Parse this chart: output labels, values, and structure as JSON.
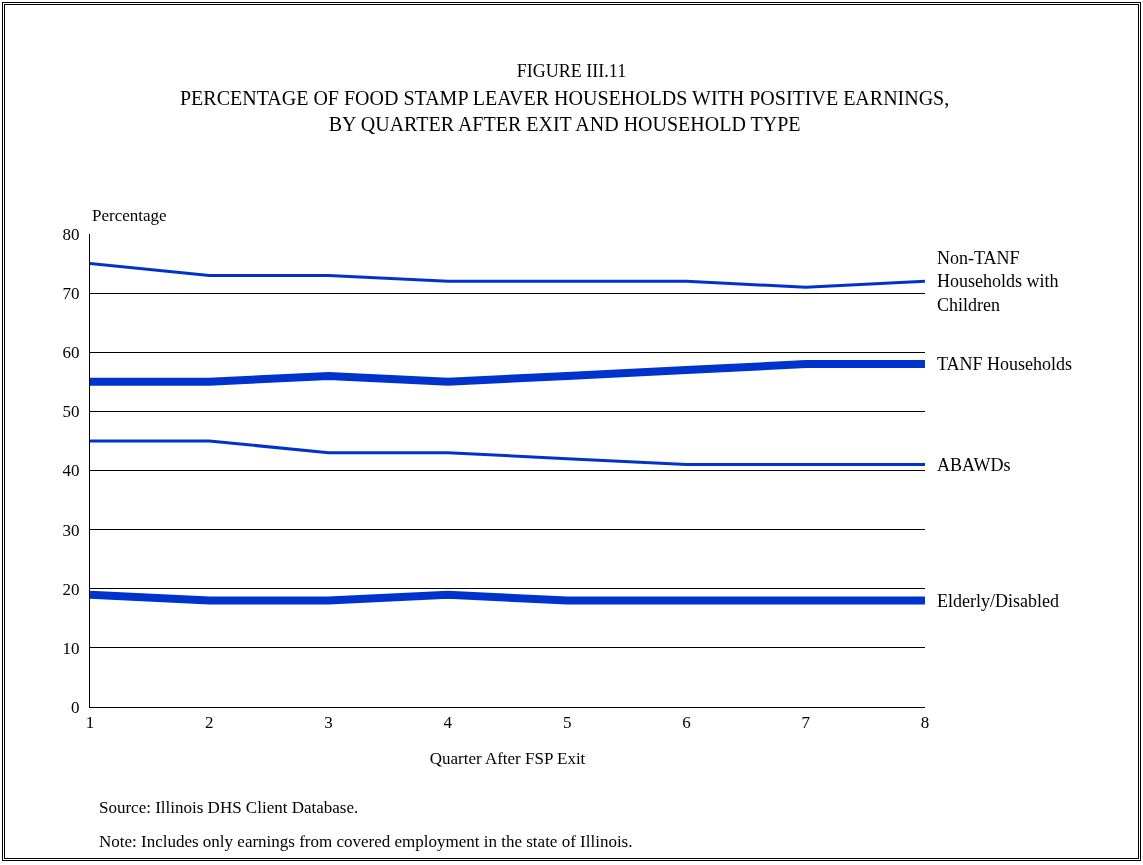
{
  "chart_data": {
    "type": "line",
    "title": "FIGURE III.11",
    "subtitle": "PERCENTAGE OF FOOD STAMP LEAVER HOUSEHOLDS WITH POSITIVE EARNINGS, BY QUARTER AFTER EXIT AND HOUSEHOLD TYPE",
    "xlabel": "Quarter After FSP Exit",
    "ylabel": "Percentage",
    "x": [
      1,
      2,
      3,
      4,
      5,
      6,
      7,
      8
    ],
    "series": [
      {
        "name": "Non-TANF Households with Children",
        "color": "#0033cc",
        "values": [
          75,
          73,
          73,
          72,
          72,
          72,
          71,
          72
        ]
      },
      {
        "name": "TANF Households",
        "color": "#0033cc",
        "values": [
          55,
          55,
          56,
          55,
          56,
          57,
          58,
          58
        ]
      },
      {
        "name": "ABAWDs",
        "color": "#0033cc",
        "values": [
          45,
          45,
          43,
          43,
          42,
          41,
          41,
          41
        ]
      },
      {
        "name": "Elderly/Disabled",
        "color": "#0033cc",
        "values": [
          19,
          18,
          18,
          19,
          18,
          18,
          18,
          18
        ]
      }
    ],
    "xlim": [
      1,
      8
    ],
    "xticks": [
      1,
      2,
      3,
      4,
      5,
      6,
      7,
      8
    ],
    "ylim": [
      0,
      80
    ],
    "yticks": [
      0,
      10,
      20,
      30,
      40,
      50,
      60,
      70,
      80
    ],
    "grid": "y",
    "legend": false,
    "marker": "none",
    "line_style": "solid",
    "annotations": [
      "Source: Illinois DHS Client Database.",
      "Note: Includes only earnings from covered employment in the state of Illinois."
    ]
  }
}
